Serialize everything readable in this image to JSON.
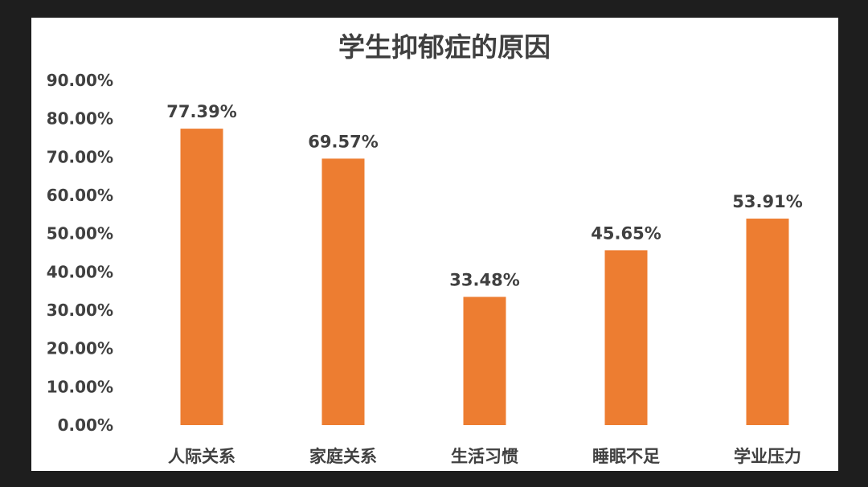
{
  "chart_data": {
    "type": "bar",
    "title": "学生抑郁症的原因",
    "xlabel": "",
    "ylabel": "",
    "categories": [
      "人际关系",
      "家庭关系",
      "生活习惯",
      "睡眠不足",
      "学业压力"
    ],
    "values": [
      77.39,
      69.57,
      33.48,
      45.65,
      53.91
    ],
    "data_labels": [
      "77.39%",
      "69.57%",
      "33.48%",
      "45.65%",
      "53.91%"
    ],
    "ylim": [
      0,
      90
    ],
    "yticks": [
      0,
      10,
      20,
      30,
      40,
      50,
      60,
      70,
      80,
      90
    ],
    "ytick_labels": [
      "0.00%",
      "10.00%",
      "20.00%",
      "30.00%",
      "40.00%",
      "50.00%",
      "60.00%",
      "70.00%",
      "80.00%",
      "90.00%"
    ],
    "bar_color": "#ED7D31",
    "grid": false,
    "legend": "none"
  }
}
